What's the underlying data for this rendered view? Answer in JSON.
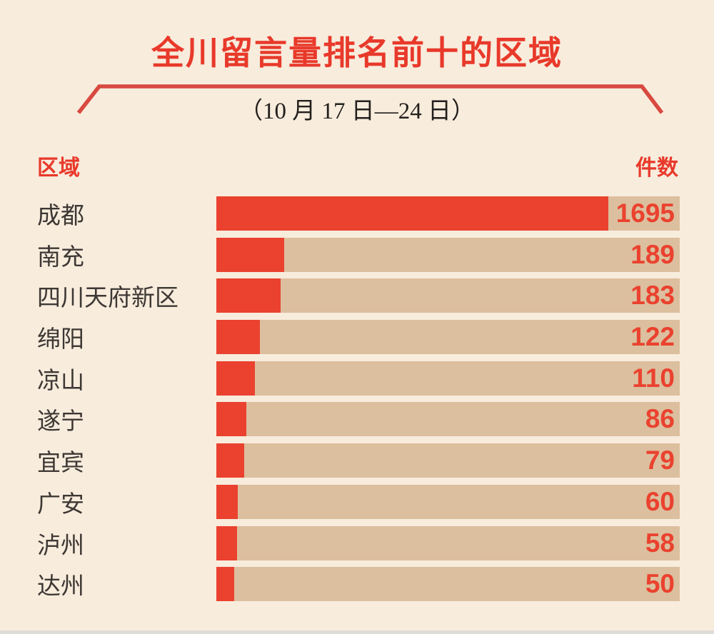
{
  "header": {
    "title": "全川留言量排名前十的区域",
    "subtitle": "（10 月 17 日—24 日）"
  },
  "columns": {
    "region": "区域",
    "count": "件数"
  },
  "colors": {
    "background": "#f8ecdd",
    "bar_red": "#ea422f",
    "track_tan": "#dcbf9e",
    "title_red": "#e8392a",
    "bracket_line_red": "#d8493f",
    "label_dark": "#3d3834"
  },
  "chart_data": {
    "type": "bar",
    "orientation": "horizontal",
    "title": "全川留言量排名前十的区域",
    "subtitle": "（10 月 17 日—24 日）",
    "column_header_left": "区域",
    "column_header_right": "件数",
    "categories": [
      "成都",
      "南充",
      "四川天府新区",
      "绵阳",
      "凉山",
      "遂宁",
      "宜宾",
      "广安",
      "泸州",
      "达州"
    ],
    "values": [
      1695,
      189,
      183,
      122,
      110,
      86,
      79,
      60,
      58,
      50
    ],
    "bar_width_pct": [
      84.6,
      14.6,
      13.9,
      9.4,
      8.3,
      6.5,
      6.0,
      4.6,
      4.4,
      3.8
    ],
    "value_labels_shown": true,
    "grid": false,
    "legend": false
  }
}
